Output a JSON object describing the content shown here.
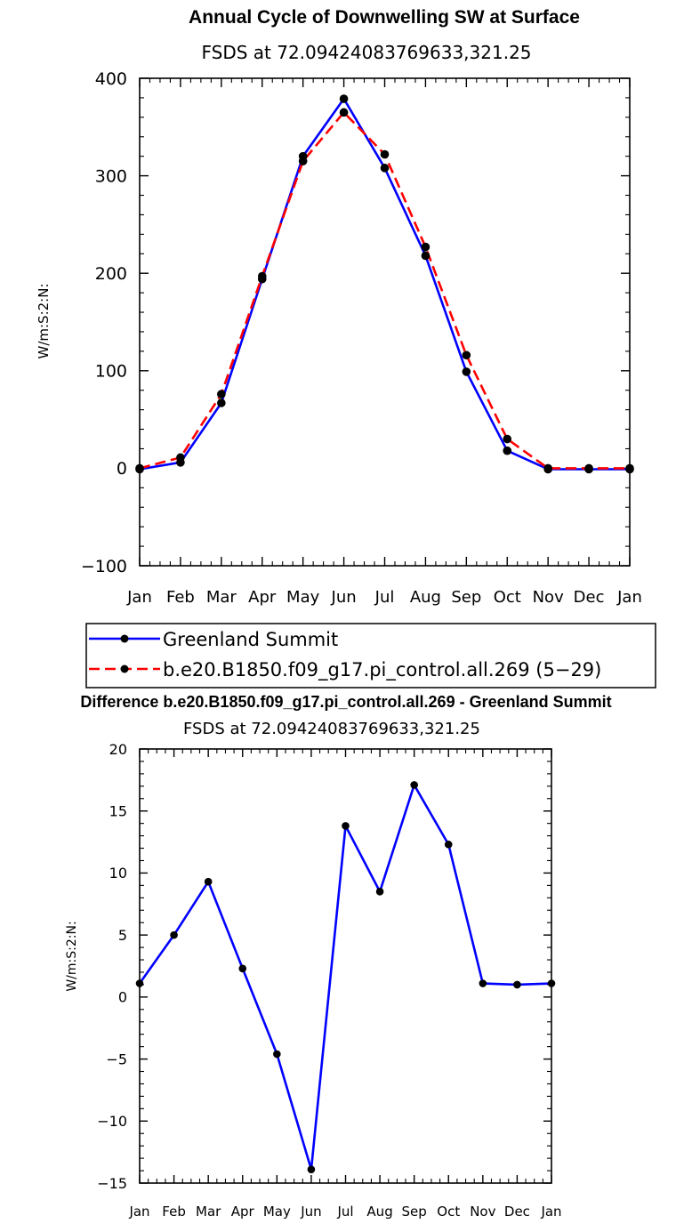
{
  "chart_data": [
    {
      "type": "line",
      "title": "Annual Cycle of Downwelling SW at Surface",
      "subtitle": "FSDS at 72.09424083769633,321.25",
      "ylabel": "W/m:S:2:N:",
      "xlabel": "",
      "categories": [
        "Jan",
        "Feb",
        "Mar",
        "Apr",
        "May",
        "Jun",
        "Jul",
        "Aug",
        "Sep",
        "Oct",
        "Nov",
        "Dec",
        "Jan"
      ],
      "ylim": [
        -100,
        400
      ],
      "yticks": [
        -100,
        0,
        100,
        200,
        300,
        400
      ],
      "grid": false,
      "legend_position": "bottom",
      "series": [
        {
          "name": "Greenland Summit",
          "color": "#0000ff",
          "style": "solid",
          "values": [
            -1,
            6,
            67,
            194,
            320,
            379,
            308,
            218,
            99,
            18,
            -1,
            -1,
            -1
          ]
        },
        {
          "name": "b.e20.B1850.f09_g17.pi_control.all.269 (5−29)",
          "color": "#ff0000",
          "style": "dashed",
          "values": [
            0,
            11,
            76,
            197,
            315,
            365,
            322,
            227,
            116,
            30,
            0,
            0,
            0
          ]
        }
      ]
    },
    {
      "type": "line",
      "title": "Difference b.e20.B1850.f09_g17.pi_control.all.269 - Greenland Summit",
      "subtitle": "FSDS at 72.09424083769633,321.25",
      "ylabel": "W/m:S:2:N:",
      "xlabel": "",
      "categories": [
        "Jan",
        "Feb",
        "Mar",
        "Apr",
        "May",
        "Jun",
        "Jul",
        "Aug",
        "Sep",
        "Oct",
        "Nov",
        "Dec",
        "Jan"
      ],
      "ylim": [
        -15,
        20
      ],
      "yticks": [
        -15,
        -10,
        -5,
        0,
        5,
        10,
        15,
        20
      ],
      "grid": false,
      "series": [
        {
          "color": "#0000ff",
          "style": "solid",
          "values": [
            1.1,
            5.0,
            9.3,
            2.3,
            -4.6,
            -13.9,
            13.8,
            8.5,
            17.1,
            12.3,
            1.1,
            1.0,
            1.1
          ]
        }
      ]
    }
  ]
}
